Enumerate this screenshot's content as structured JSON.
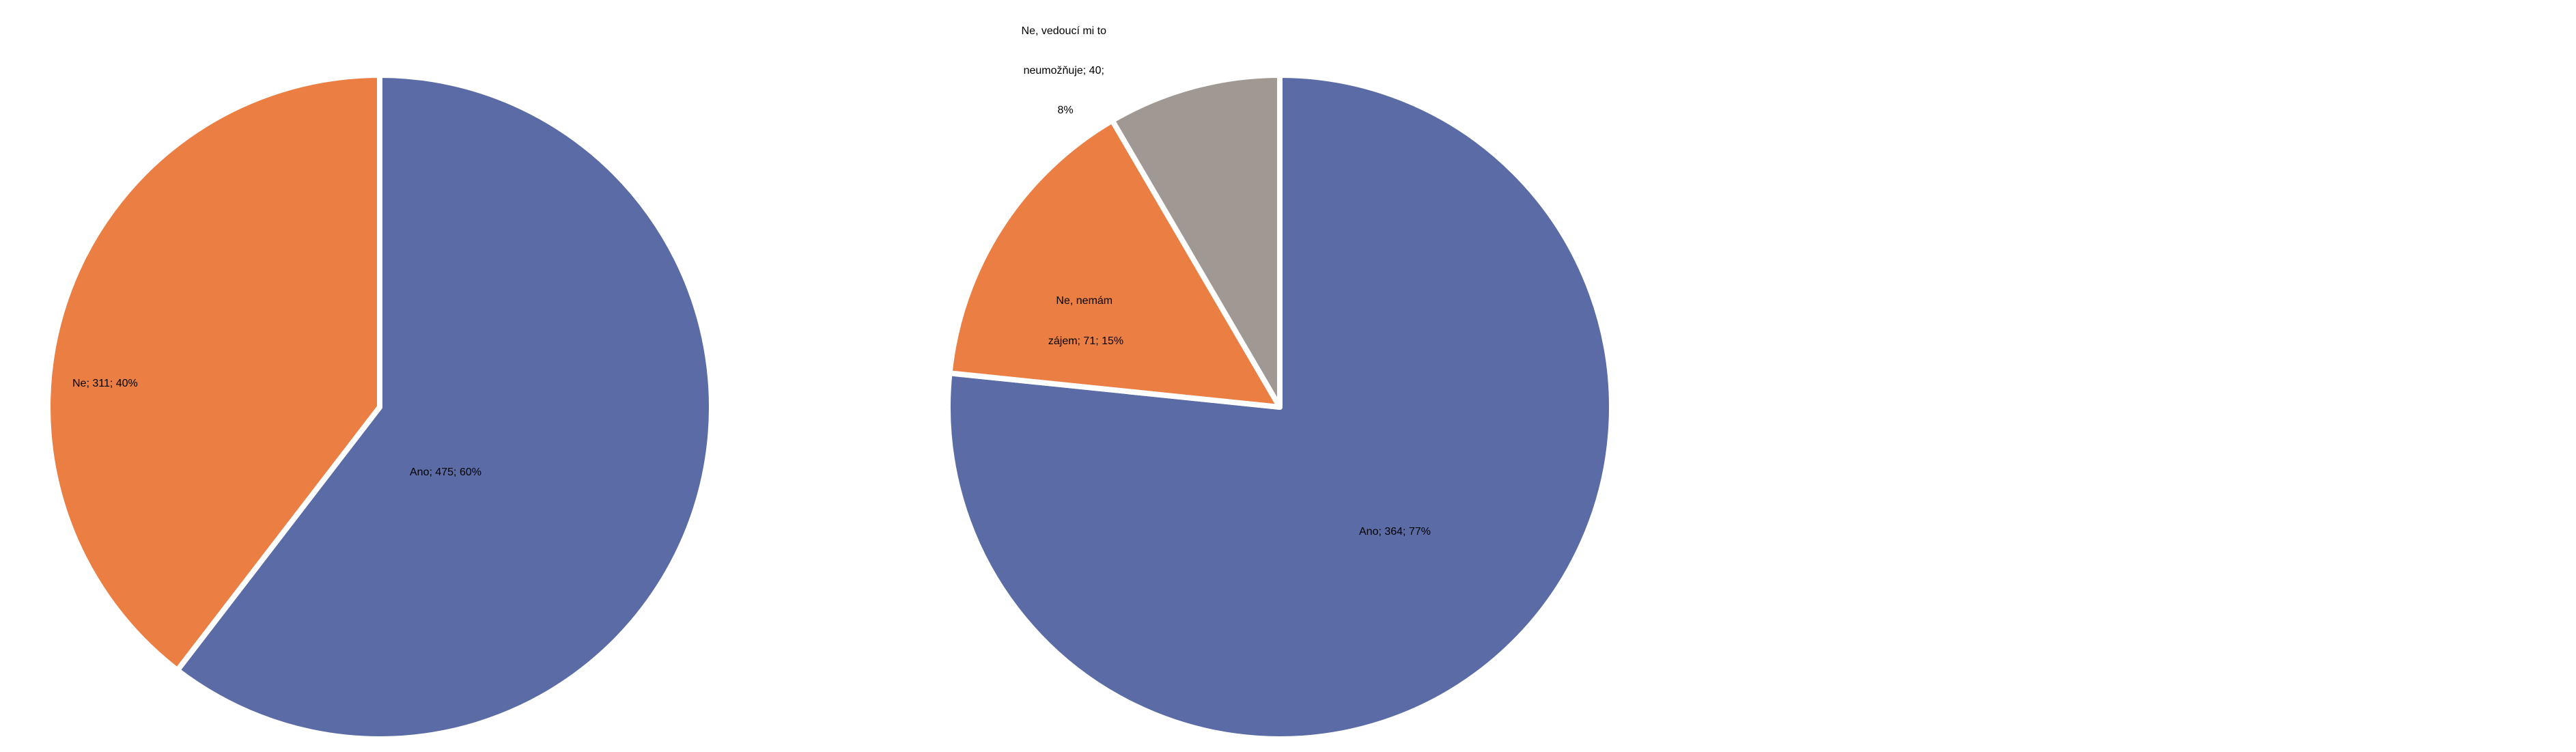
{
  "chart_data": [
    {
      "type": "pie",
      "start_angle_deg": 0,
      "slices": [
        {
          "name": "Ano",
          "value": 475,
          "percent": "60%",
          "label": "Ano; 475; 60%",
          "color": "#5A6BA6"
        },
        {
          "name": "Ne",
          "value": 311,
          "percent": "40%",
          "label": "Ne; 311; 40%",
          "color": "#EB7E42"
        }
      ]
    },
    {
      "type": "pie",
      "start_angle_deg": 0,
      "slices": [
        {
          "name": "Ano",
          "value": 364,
          "percent": "77%",
          "label": "Ano; 364; 77%",
          "label_lines": [
            "Ano; 364; 77%"
          ],
          "color": "#5A6BA6"
        },
        {
          "name": "Ne, nemám zájem",
          "value": 71,
          "percent": "15%",
          "label": "Ne, nemám zájem; 71; 15%",
          "label_lines": [
            "Ne, nemám",
            "zájem; 71; 15%"
          ],
          "color": "#EB7E42"
        },
        {
          "name": "Ne, vedoucí mi to neumožňuje",
          "value": 40,
          "percent": "8%",
          "label": "Ne, vedoucí mi to neumožňuje; 40; 8%",
          "label_lines": [
            "Ne, vedoucí mi to",
            "neumožňuje; 40;",
            "8%"
          ],
          "color": "#A09893"
        }
      ]
    }
  ]
}
